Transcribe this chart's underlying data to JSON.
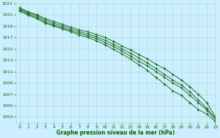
{
  "x": [
    0,
    1,
    2,
    3,
    4,
    5,
    6,
    7,
    8,
    9,
    10,
    11,
    12,
    13,
    14,
    15,
    16,
    17,
    18,
    19,
    20,
    21,
    22,
    23
  ],
  "series": [
    [
      1022.2,
      1021.5,
      1021.0,
      1020.3,
      1019.8,
      1019.3,
      1018.8,
      1018.3,
      1018.0,
      1017.5,
      1017.0,
      1016.3,
      1015.5,
      1014.8,
      1014.0,
      1013.2,
      1012.3,
      1011.5,
      1010.5,
      1009.5,
      1008.3,
      1007.0,
      1005.5,
      1003.0
    ],
    [
      1022.0,
      1021.3,
      1020.8,
      1020.0,
      1019.5,
      1019.0,
      1018.5,
      1018.0,
      1017.6,
      1017.1,
      1016.5,
      1015.8,
      1015.0,
      1014.2,
      1013.4,
      1012.5,
      1011.5,
      1010.5,
      1009.5,
      1008.6,
      1007.4,
      1006.0,
      1004.5,
      1002.8
    ],
    [
      1021.8,
      1021.1,
      1020.5,
      1019.7,
      1019.2,
      1018.7,
      1018.2,
      1017.7,
      1017.3,
      1016.8,
      1016.1,
      1015.4,
      1014.6,
      1013.7,
      1012.8,
      1012.0,
      1011.0,
      1010.0,
      1009.0,
      1008.1,
      1006.8,
      1005.5,
      1004.2,
      1002.5
    ],
    [
      1021.6,
      1020.9,
      1020.3,
      1019.5,
      1019.0,
      1018.5,
      1018.0,
      1017.4,
      1017.0,
      1016.4,
      1015.7,
      1014.9,
      1014.1,
      1013.2,
      1012.2,
      1011.2,
      1010.0,
      1008.8,
      1007.6,
      1006.8,
      1005.5,
      1004.3,
      1003.5,
      1002.2
    ]
  ],
  "line_color": "#1a6b1a",
  "marker": "+",
  "background_color": "#cceeff",
  "grid_color": "#aaddcc",
  "xlabel": "Graphe pression niveau de la mer (hPa)",
  "xlabel_color": "#006600",
  "tick_color": "#006600",
  "ylim": [
    1002,
    1023
  ],
  "yticks": [
    1003,
    1005,
    1007,
    1009,
    1011,
    1013,
    1015,
    1017,
    1019,
    1021,
    1023
  ],
  "xlim": [
    -0.5,
    23
  ],
  "xticks": [
    0,
    1,
    2,
    3,
    4,
    5,
    6,
    7,
    8,
    9,
    10,
    11,
    12,
    13,
    14,
    15,
    16,
    17,
    18,
    19,
    20,
    21,
    22,
    23
  ]
}
